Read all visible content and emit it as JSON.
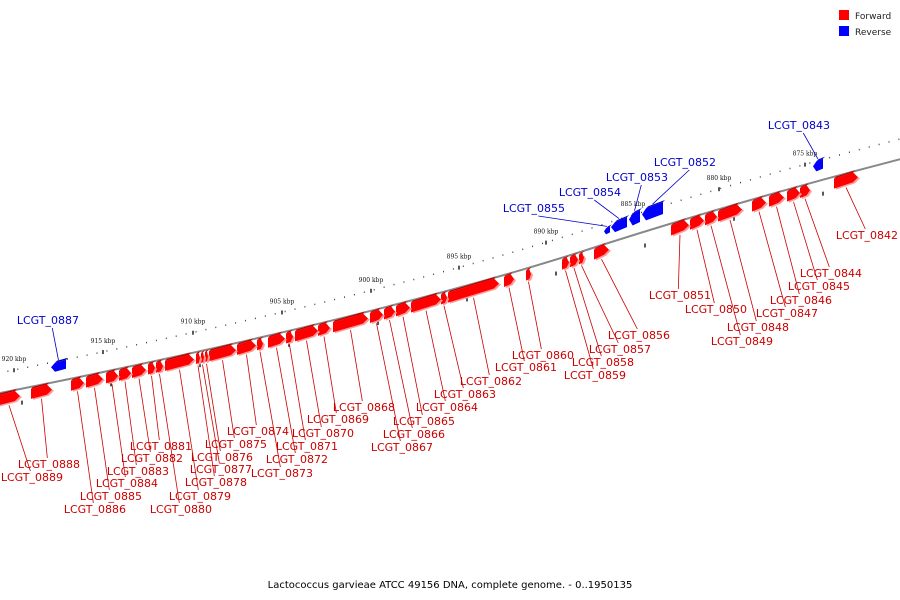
{
  "colors": {
    "forward": "#ff0000",
    "forward_shade": "#bb0000",
    "forward_shadow": "#ff9a9a",
    "reverse": "#0000ff",
    "reverse_shade": "#0000aa",
    "backbone": "#888888",
    "forward_label": "#cc0000",
    "reverse_label": "#0000cc"
  },
  "legend": {
    "forward_label": "Forward",
    "reverse_label": "Reverse"
  },
  "caption": "Lactococcus garvieae ATCC 49156 DNA, complete genome. - 0..1950135",
  "ticks": [
    {
      "label": "920 kbp"
    },
    {
      "label": "915 kbp"
    },
    {
      "label": "910 kbp"
    },
    {
      "label": "905 kbp"
    },
    {
      "label": "900 kbp"
    },
    {
      "label": "895 kbp"
    },
    {
      "label": "890 kbp"
    },
    {
      "label": "885 kbp"
    },
    {
      "label": "880 kbp"
    },
    {
      "label": "875 kbp"
    }
  ],
  "genes": [
    {
      "name": "LCGT_0842",
      "strand": "forward"
    },
    {
      "name": "LCGT_0843",
      "strand": "reverse"
    },
    {
      "name": "LCGT_0844",
      "strand": "forward"
    },
    {
      "name": "LCGT_0845",
      "strand": "forward"
    },
    {
      "name": "LCGT_0846",
      "strand": "forward"
    },
    {
      "name": "LCGT_0847",
      "strand": "forward"
    },
    {
      "name": "LCGT_0848",
      "strand": "forward"
    },
    {
      "name": "LCGT_0849",
      "strand": "forward"
    },
    {
      "name": "LCGT_0850",
      "strand": "forward"
    },
    {
      "name": "LCGT_0851",
      "strand": "forward"
    },
    {
      "name": "LCGT_0852",
      "strand": "reverse"
    },
    {
      "name": "LCGT_0853",
      "strand": "reverse"
    },
    {
      "name": "LCGT_0854",
      "strand": "reverse"
    },
    {
      "name": "LCGT_0855",
      "strand": "reverse"
    },
    {
      "name": "LCGT_0856",
      "strand": "forward"
    },
    {
      "name": "LCGT_0857",
      "strand": "forward"
    },
    {
      "name": "LCGT_0858",
      "strand": "forward"
    },
    {
      "name": "LCGT_0859",
      "strand": "forward"
    },
    {
      "name": "LCGT_0860",
      "strand": "forward"
    },
    {
      "name": "LCGT_0861",
      "strand": "forward"
    },
    {
      "name": "LCGT_0862",
      "strand": "forward"
    },
    {
      "name": "LCGT_0863",
      "strand": "forward"
    },
    {
      "name": "LCGT_0864",
      "strand": "forward"
    },
    {
      "name": "LCGT_0865",
      "strand": "forward"
    },
    {
      "name": "LCGT_0866",
      "strand": "forward"
    },
    {
      "name": "LCGT_0867",
      "strand": "forward"
    },
    {
      "name": "LCGT_0868",
      "strand": "forward"
    },
    {
      "name": "LCGT_0869",
      "strand": "forward"
    },
    {
      "name": "LCGT_0870",
      "strand": "forward"
    },
    {
      "name": "LCGT_0871",
      "strand": "forward"
    },
    {
      "name": "LCGT_0872",
      "strand": "forward"
    },
    {
      "name": "LCGT_0873",
      "strand": "forward"
    },
    {
      "name": "LCGT_0874",
      "strand": "forward"
    },
    {
      "name": "LCGT_0875",
      "strand": "forward"
    },
    {
      "name": "LCGT_0876",
      "strand": "forward"
    },
    {
      "name": "LCGT_0877",
      "strand": "forward"
    },
    {
      "name": "LCGT_0878",
      "strand": "forward"
    },
    {
      "name": "LCGT_0879",
      "strand": "forward"
    },
    {
      "name": "LCGT_0880",
      "strand": "forward"
    },
    {
      "name": "LCGT_0881",
      "strand": "forward"
    },
    {
      "name": "LCGT_0882",
      "strand": "forward"
    },
    {
      "name": "LCGT_0883",
      "strand": "forward"
    },
    {
      "name": "LCGT_0884",
      "strand": "forward"
    },
    {
      "name": "LCGT_0885",
      "strand": "forward"
    },
    {
      "name": "LCGT_0886",
      "strand": "forward"
    },
    {
      "name": "LCGT_0887",
      "strand": "reverse"
    },
    {
      "name": "LCGT_0888",
      "strand": "forward"
    },
    {
      "name": "LCGT_0889",
      "strand": "forward"
    }
  ]
}
